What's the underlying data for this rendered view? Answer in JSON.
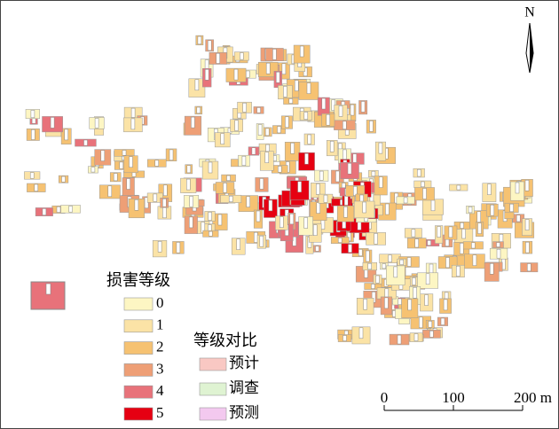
{
  "north": "N",
  "legend": {
    "title": "损害等级",
    "items": [
      {
        "label": "0",
        "color": "#fdf6c3"
      },
      {
        "label": "1",
        "color": "#fbe3a6"
      },
      {
        "label": "2",
        "color": "#f6c272"
      },
      {
        "label": "3",
        "color": "#ee9f76"
      },
      {
        "label": "4",
        "color": "#e8727a"
      },
      {
        "label": "5",
        "color": "#e60012"
      }
    ]
  },
  "comparison": {
    "title": "等级对比",
    "items": [
      {
        "label": "预计",
        "color": "#f9c8c3"
      },
      {
        "label": "调查",
        "color": "#dff3d2"
      },
      {
        "label": "预测",
        "color": "#f3c9ef"
      }
    ]
  },
  "scale_bar": {
    "labels": [
      "0",
      "100",
      "200 m"
    ]
  }
}
